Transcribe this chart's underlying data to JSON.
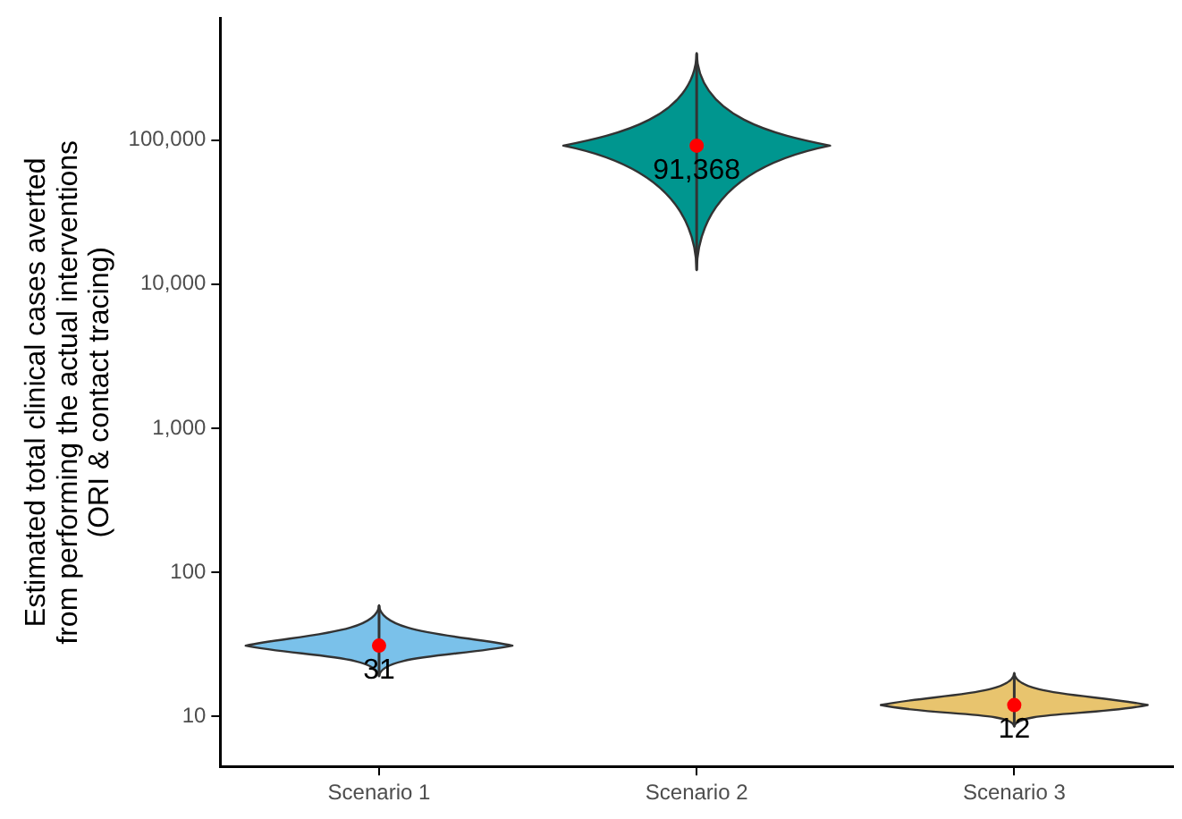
{
  "chart_data": {
    "type": "scatter",
    "ylabel": "Estimated total clinical cases averted\nfrom performing the actual interventions\n(ORI & contact tracing)",
    "categories": [
      "Scenario 1",
      "Scenario 2",
      "Scenario 3"
    ],
    "log": "y",
    "ylim": [
      4.5,
      700000
    ],
    "yticks": [
      10,
      100,
      {
        "value": 1000,
        "label": "1,000"
      },
      {
        "value": 10000,
        "label": "10,000"
      },
      {
        "value": 100000,
        "label": "100,000"
      }
    ],
    "grid": false,
    "legend": false,
    "series": [
      {
        "color": "#ff0000",
        "marker": "circle",
        "values": [
          31,
          91368,
          12
        ],
        "errors": [
          [
            19,
            59
          ],
          [
            12500,
            400000
          ],
          [
            8.5,
            20
          ]
        ],
        "data_labels": true,
        "value_labels": [
          "31",
          "91,368",
          "12"
        ]
      }
    ]
  }
}
